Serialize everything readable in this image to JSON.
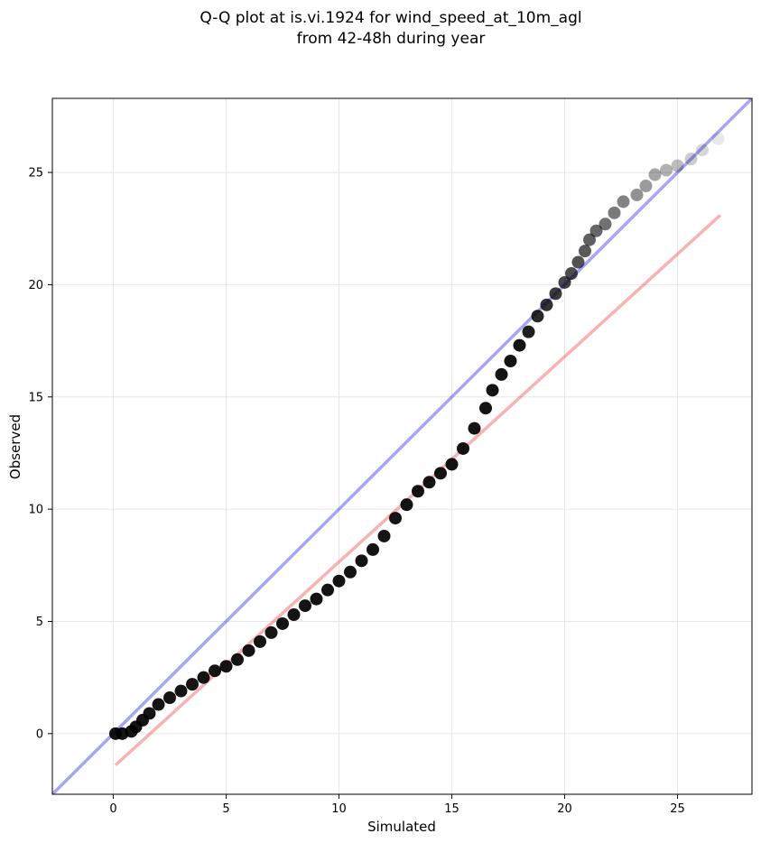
{
  "chart_data": {
    "type": "scatter",
    "title": [
      "Q-Q plot at is.vi.1924 for wind_speed_at_10m_agl",
      "from 42-48h during year"
    ],
    "xlabel": "Simulated",
    "ylabel": "Observed",
    "xlim": [
      -2.7,
      28.3
    ],
    "ylim": [
      -2.7,
      28.3
    ],
    "xticks": [
      0,
      5,
      10,
      15,
      20,
      25
    ],
    "yticks": [
      0,
      5,
      10,
      15,
      20,
      25
    ],
    "xtick_labels": [
      "0",
      "5",
      "10",
      "15",
      "20",
      "25"
    ],
    "ytick_labels": [
      "0",
      "5",
      "10",
      "15",
      "20",
      "25"
    ],
    "grid": true,
    "series": [
      {
        "kind": "points",
        "color": "#000000",
        "points": [
          [
            0.1,
            0.0
          ],
          [
            0.4,
            0.0
          ],
          [
            0.8,
            0.1
          ],
          [
            1.0,
            0.3
          ],
          [
            1.3,
            0.6
          ],
          [
            1.6,
            0.9
          ],
          [
            2.0,
            1.3
          ],
          [
            2.5,
            1.6
          ],
          [
            3.0,
            1.9
          ],
          [
            3.5,
            2.2
          ],
          [
            4.0,
            2.5
          ],
          [
            4.5,
            2.8
          ],
          [
            5.0,
            3.0
          ],
          [
            5.5,
            3.3
          ],
          [
            6.0,
            3.7
          ],
          [
            6.5,
            4.1
          ],
          [
            7.0,
            4.5
          ],
          [
            7.5,
            4.9
          ],
          [
            8.0,
            5.3
          ],
          [
            8.5,
            5.7
          ],
          [
            9.0,
            6.0
          ],
          [
            9.5,
            6.4
          ],
          [
            10.0,
            6.8
          ],
          [
            10.5,
            7.2
          ],
          [
            11.0,
            7.7
          ],
          [
            11.5,
            8.2
          ],
          [
            12.0,
            8.8
          ],
          [
            12.5,
            9.6
          ],
          [
            13.0,
            10.2
          ],
          [
            13.5,
            10.8
          ],
          [
            14.0,
            11.2
          ],
          [
            14.5,
            11.6
          ],
          [
            15.0,
            12.0
          ],
          [
            15.5,
            12.7
          ],
          [
            16.0,
            13.6
          ],
          [
            16.5,
            14.5
          ],
          [
            16.8,
            15.3
          ],
          [
            17.2,
            16.0
          ],
          [
            17.6,
            16.6
          ],
          [
            18.0,
            17.3
          ],
          [
            18.4,
            17.9
          ],
          [
            18.8,
            18.6
          ],
          [
            19.2,
            19.1
          ],
          [
            19.6,
            19.6
          ],
          [
            20.0,
            20.1
          ],
          [
            20.3,
            20.5
          ],
          [
            20.6,
            21.0
          ],
          [
            20.9,
            21.5
          ],
          [
            21.1,
            22.0
          ],
          [
            21.4,
            22.4
          ],
          [
            21.8,
            22.7
          ],
          [
            22.2,
            23.2
          ],
          [
            22.6,
            23.7
          ],
          [
            23.2,
            24.0
          ],
          [
            23.6,
            24.4
          ],
          [
            24.0,
            24.9
          ],
          [
            24.5,
            25.1
          ],
          [
            25.0,
            25.3
          ],
          [
            25.6,
            25.6
          ],
          [
            26.1,
            26.0
          ],
          [
            26.8,
            26.5
          ]
        ]
      },
      {
        "kind": "line",
        "color": "#0000dd",
        "points": [
          [
            -2.7,
            -2.7
          ],
          [
            28.3,
            28.3
          ]
        ]
      },
      {
        "kind": "line",
        "color": "#ee2222",
        "points": [
          [
            0.1,
            -1.4
          ],
          [
            26.9,
            23.1
          ]
        ]
      }
    ]
  }
}
